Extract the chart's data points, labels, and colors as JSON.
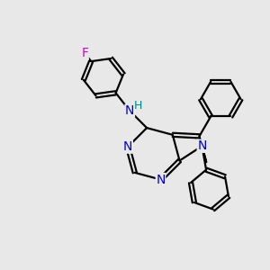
{
  "bg_color": "#e8e8e8",
  "bond_color": "#000000",
  "n_color": "#0000cc",
  "f_color": "#cc00cc",
  "h_color": "#008888",
  "line_width": 1.6,
  "font_size_atoms": 10,
  "font_size_h": 9,
  "xlim": [
    0,
    10
  ],
  "ylim": [
    0,
    10
  ]
}
